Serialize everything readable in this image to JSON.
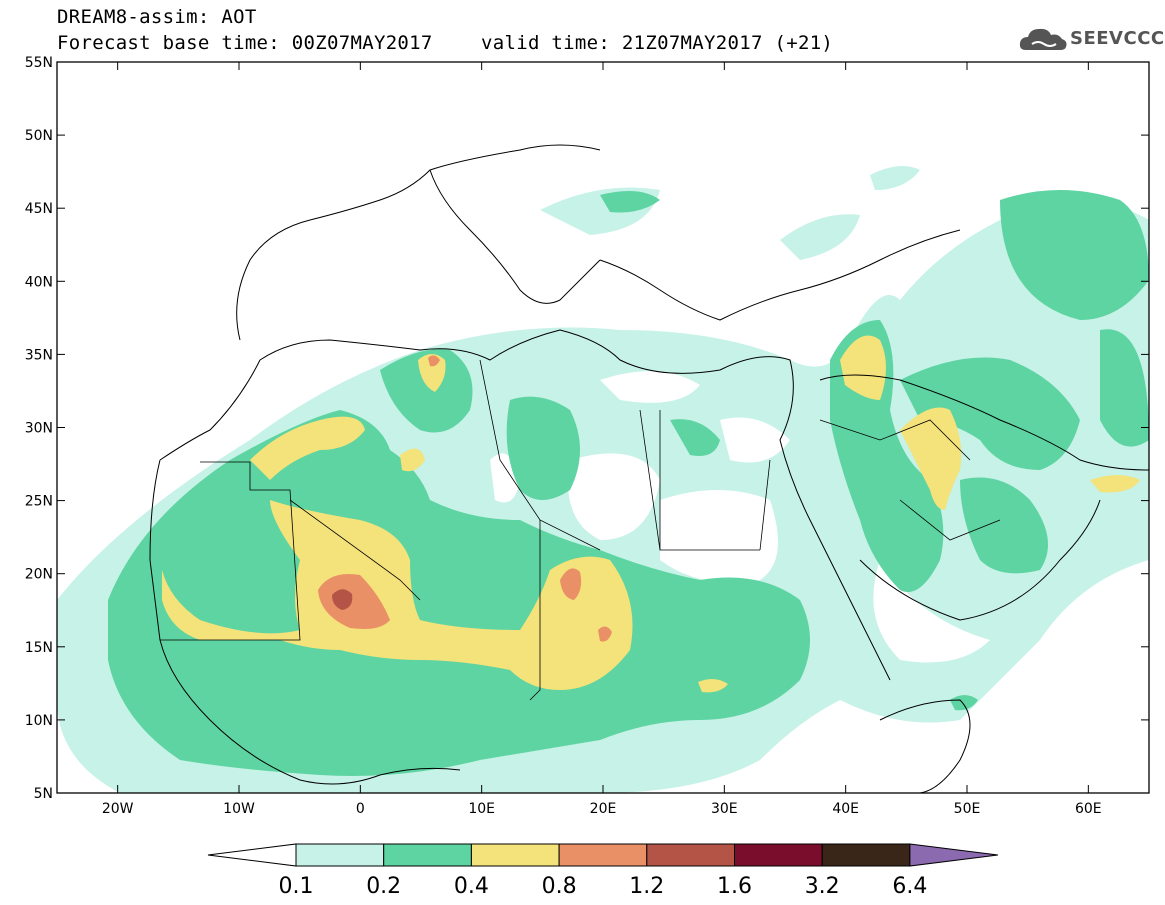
{
  "header": {
    "title_line1": "DREAM8-assim: AOT",
    "title_line2": "Forecast base time: 00Z07MAY2017",
    "valid_time": "valid time: 21Z07MAY2017 (+21)",
    "logo_text": "SEEVCCC"
  },
  "axes": {
    "lat_labels": [
      "55N",
      "50N",
      "45N",
      "40N",
      "35N",
      "30N",
      "25N",
      "20N",
      "15N",
      "10N",
      "5N"
    ],
    "lon_labels": [
      "20W",
      "10W",
      "0",
      "10E",
      "20E",
      "30E",
      "40E",
      "50E",
      "60E"
    ]
  },
  "colorbar": {
    "labels": [
      "0.1",
      "0.2",
      "0.4",
      "0.8",
      "1.2",
      "1.6",
      "3.2",
      "6.4"
    ],
    "colors": [
      "#ffffff",
      "#c6f2e7",
      "#5ed4a2",
      "#f4e27a",
      "#ea9066",
      "#b35447",
      "#7a0d2b",
      "#3a2618",
      "#8b6ab0"
    ]
  }
}
